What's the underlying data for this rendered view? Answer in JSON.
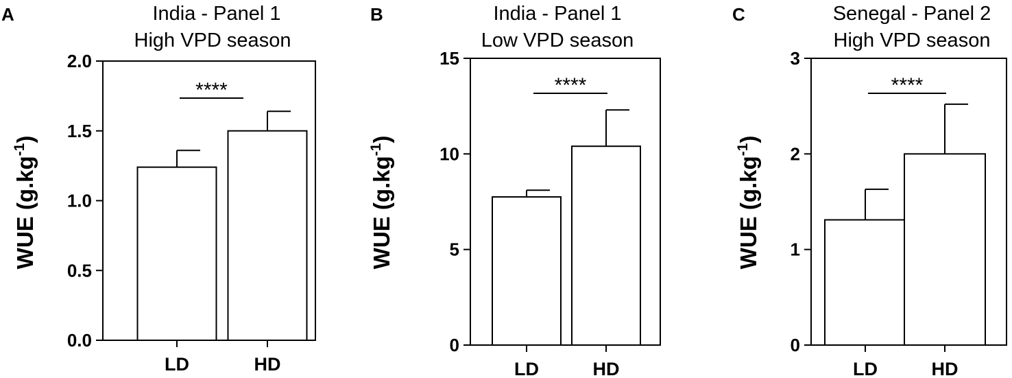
{
  "chart_data": [
    {
      "panel": "A",
      "type": "bar",
      "title": [
        "India - Panel 1",
        "High VPD season"
      ],
      "xlabel": "",
      "ylabel": "WUE (g.kg-1)",
      "ylabel_main": "WUE (g.kg",
      "ylabel_sup": "-1",
      "ylabel_close": ")",
      "categories": [
        "LD",
        "HD"
      ],
      "values": [
        1.24,
        1.5
      ],
      "error_upper": [
        0.12,
        0.14
      ],
      "ylim": [
        0,
        2.0
      ],
      "yticks": [
        0.0,
        0.5,
        1.0,
        1.5,
        2.0
      ],
      "ytick_labels": [
        "0.0",
        "0.5",
        "1.0",
        "1.5",
        "2.0"
      ],
      "significance": "****",
      "grid": false
    },
    {
      "panel": "B",
      "type": "bar",
      "title": [
        "India - Panel 1",
        "Low VPD season"
      ],
      "xlabel": "",
      "ylabel": "WUE (g.kg-1)",
      "ylabel_main": "WUE (g.kg",
      "ylabel_sup": "-1",
      "ylabel_close": ")",
      "categories": [
        "LD",
        "HD"
      ],
      "values": [
        7.75,
        10.4
      ],
      "error_upper": [
        0.35,
        1.9
      ],
      "ylim": [
        0,
        15
      ],
      "yticks": [
        0,
        5,
        10,
        15
      ],
      "ytick_labels": [
        "0",
        "5",
        "10",
        "15"
      ],
      "significance": "****",
      "grid": false
    },
    {
      "panel": "C",
      "type": "bar",
      "title": [
        "Senegal  - Panel 2",
        "High VPD season"
      ],
      "xlabel": "",
      "ylabel": "WUE (g.kg-1)",
      "ylabel_main": "WUE (g.kg",
      "ylabel_sup": "-1",
      "ylabel_close": ")",
      "categories": [
        "LD",
        "HD"
      ],
      "values": [
        1.31,
        2.0
      ],
      "error_upper": [
        0.32,
        0.52
      ],
      "ylim": [
        0,
        3
      ],
      "yticks": [
        0,
        1,
        2,
        3
      ],
      "ytick_labels": [
        "0",
        "1",
        "2",
        "3"
      ],
      "significance": "****",
      "grid": false
    }
  ]
}
